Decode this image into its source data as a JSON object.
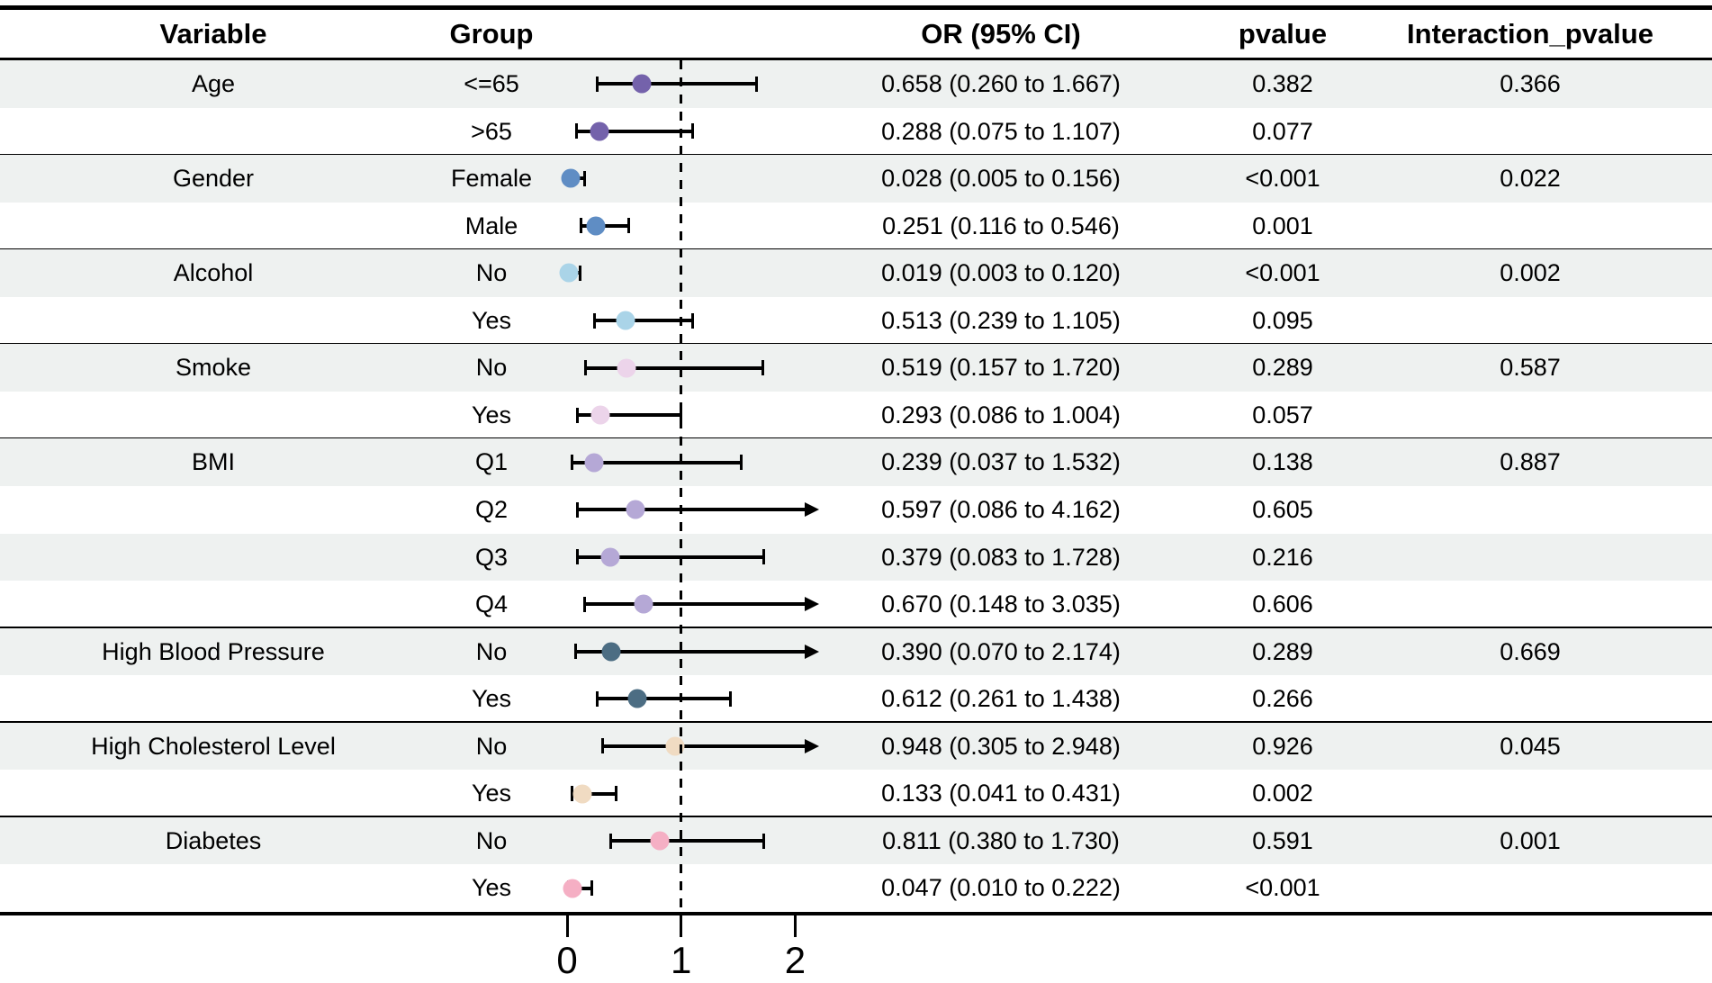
{
  "colors": {
    "row_shade": "#eef1f0",
    "line": "#000000"
  },
  "table": {
    "headers": [
      "Variable",
      "Group",
      "OR (95% CI)",
      "pvalue",
      "Interaction_pvalue"
    ]
  },
  "chart_data": {
    "type": "forest",
    "title": "",
    "xlabel": "",
    "axis": {
      "ticks": [
        0,
        1,
        2
      ],
      "tick_labels": [
        "0",
        "1",
        "2"
      ],
      "drawn_range": [
        0,
        2.2
      ],
      "reference_line": 1
    },
    "legend": "none",
    "groups": [
      {
        "variable": "Age",
        "color": "#7462ab",
        "rows": [
          {
            "group": "<=65",
            "or": 0.658,
            "low": 0.26,
            "high": 1.667,
            "or_text": "0.658 (0.260 to 1.667)",
            "pvalue": "0.382",
            "interaction_pvalue": "0.366"
          },
          {
            "group": ">65",
            "or": 0.288,
            "low": 0.075,
            "high": 1.107,
            "or_text": "0.288 (0.075 to 1.107)",
            "pvalue": "0.077",
            "interaction_pvalue": ""
          }
        ]
      },
      {
        "variable": "Gender",
        "color": "#5f8dc4",
        "rows": [
          {
            "group": "Female",
            "or": 0.028,
            "low": 0.005,
            "high": 0.156,
            "or_text": "0.028 (0.005 to 0.156)",
            "pvalue": "<0.001",
            "interaction_pvalue": "0.022"
          },
          {
            "group": "Male",
            "or": 0.251,
            "low": 0.116,
            "high": 0.546,
            "or_text": "0.251 (0.116 to 0.546)",
            "pvalue": "0.001",
            "interaction_pvalue": ""
          }
        ]
      },
      {
        "variable": "Alcohol",
        "color": "#aad4e8",
        "rows": [
          {
            "group": "No",
            "or": 0.019,
            "low": 0.003,
            "high": 0.12,
            "or_text": "0.019 (0.003 to 0.120)",
            "pvalue": "<0.001",
            "interaction_pvalue": "0.002"
          },
          {
            "group": "Yes",
            "or": 0.513,
            "low": 0.239,
            "high": 1.105,
            "or_text": "0.513 (0.239 to 1.105)",
            "pvalue": "0.095",
            "interaction_pvalue": ""
          }
        ]
      },
      {
        "variable": "Smoke",
        "color": "#ecd4ea",
        "rows": [
          {
            "group": "No",
            "or": 0.519,
            "low": 0.157,
            "high": 1.72,
            "or_text": "0.519 (0.157 to 1.720)",
            "pvalue": "0.289",
            "interaction_pvalue": "0.587"
          },
          {
            "group": "Yes",
            "or": 0.293,
            "low": 0.086,
            "high": 1.004,
            "or_text": "0.293 (0.086 to 1.004)",
            "pvalue": "0.057",
            "interaction_pvalue": ""
          }
        ]
      },
      {
        "variable": "BMI",
        "color": "#b5a8d6",
        "rows": [
          {
            "group": "Q1",
            "or": 0.239,
            "low": 0.037,
            "high": 1.532,
            "or_text": "0.239 (0.037 to 1.532)",
            "pvalue": "0.138",
            "interaction_pvalue": "0.887"
          },
          {
            "group": "Q2",
            "or": 0.597,
            "low": 0.086,
            "high": 4.162,
            "or_text": "0.597 (0.086 to 4.162)",
            "pvalue": "0.605",
            "interaction_pvalue": ""
          },
          {
            "group": "Q3",
            "or": 0.379,
            "low": 0.083,
            "high": 1.728,
            "or_text": "0.379 (0.083 to 1.728)",
            "pvalue": "0.216",
            "interaction_pvalue": ""
          },
          {
            "group": "Q4",
            "or": 0.67,
            "low": 0.148,
            "high": 3.035,
            "or_text": "0.670 (0.148 to 3.035)",
            "pvalue": "0.606",
            "interaction_pvalue": ""
          }
        ]
      },
      {
        "variable": "High Blood Pressure",
        "color": "#4c6d83",
        "rows": [
          {
            "group": "No",
            "or": 0.39,
            "low": 0.07,
            "high": 2.174,
            "or_text": "0.390 (0.070 to 2.174)",
            "pvalue": "0.289",
            "interaction_pvalue": "0.669"
          },
          {
            "group": "Yes",
            "or": 0.612,
            "low": 0.261,
            "high": 1.438,
            "or_text": "0.612 (0.261 to 1.438)",
            "pvalue": "0.266",
            "interaction_pvalue": ""
          }
        ]
      },
      {
        "variable": "High Cholesterol Level",
        "color": "#f0dbc2",
        "rows": [
          {
            "group": "No",
            "or": 0.948,
            "low": 0.305,
            "high": 2.948,
            "or_text": "0.948 (0.305 to 2.948)",
            "pvalue": "0.926",
            "interaction_pvalue": "0.045"
          },
          {
            "group": "Yes",
            "or": 0.133,
            "low": 0.041,
            "high": 0.431,
            "or_text": "0.133 (0.041 to 0.431)",
            "pvalue": "0.002",
            "interaction_pvalue": ""
          }
        ]
      },
      {
        "variable": "Diabetes",
        "color": "#f5afc4",
        "rows": [
          {
            "group": "No",
            "or": 0.811,
            "low": 0.38,
            "high": 1.73,
            "or_text": "0.811 (0.380 to 1.730)",
            "pvalue": "0.591",
            "interaction_pvalue": "0.001"
          },
          {
            "group": "Yes",
            "or": 0.047,
            "low": 0.01,
            "high": 0.222,
            "or_text": "0.047 (0.010 to 0.222)",
            "pvalue": "<0.001",
            "interaction_pvalue": ""
          }
        ]
      }
    ]
  }
}
